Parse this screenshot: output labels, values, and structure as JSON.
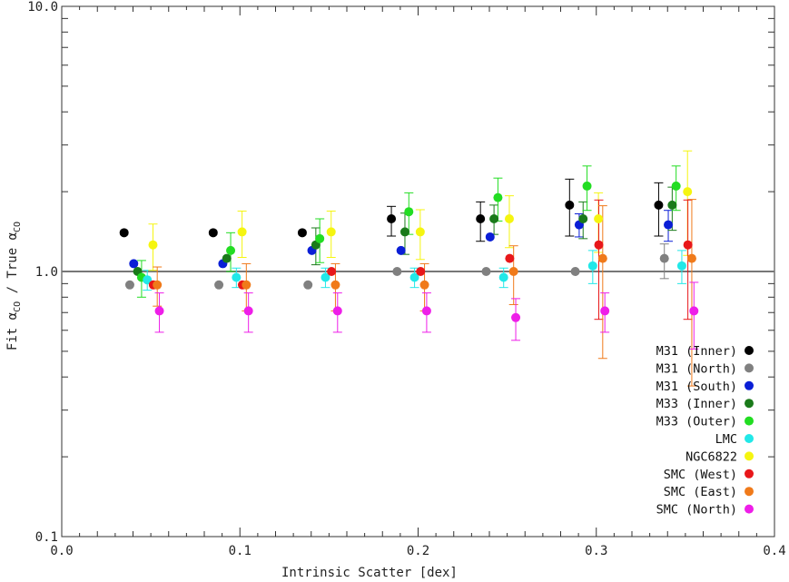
{
  "chart_data": {
    "type": "scatter",
    "title": "",
    "xlabel": "Intrinsic Scatter [dex]",
    "ylabel": "Fit αCO / True αCO",
    "ylabel_parts": {
      "fit": "Fit ",
      "alpha1": "α",
      "sub1": "CO",
      "mid": " / True ",
      "alpha2": "α",
      "sub2": "CO"
    },
    "xlim": [
      0.0,
      0.4
    ],
    "ylim": [
      0.1,
      10.0
    ],
    "yscale": "log",
    "xticks": [
      0.0,
      0.1,
      0.2,
      0.3,
      0.4
    ],
    "xtick_labels": [
      "0.0",
      "0.1",
      "0.2",
      "0.3",
      "0.4"
    ],
    "yticks": [
      0.1,
      1.0,
      10.0
    ],
    "ytick_labels": [
      "0.1",
      "1.0",
      "10.0"
    ],
    "reference_line": {
      "y": 1.0,
      "color": "#777777"
    },
    "legend_position": "bottom-right",
    "x_groups": [
      0.05,
      0.1,
      0.15,
      0.2,
      0.25,
      0.3,
      0.35
    ],
    "series": [
      {
        "name": "M31 (Inner)",
        "color": "#000000",
        "offset": -0.015,
        "values": [
          1.4,
          1.4,
          1.4,
          1.58,
          1.58,
          1.78,
          1.78
        ],
        "errors": [
          [
            0,
            0
          ],
          [
            0,
            0
          ],
          [
            0,
            0
          ],
          [
            0.22,
            0.18
          ],
          [
            0.28,
            0.25
          ],
          [
            0.42,
            0.45
          ],
          [
            0.42,
            0.38
          ]
        ]
      },
      {
        "name": "M31 (North)",
        "color": "#808080",
        "offset": -0.013,
        "values": [
          0.89,
          0.89,
          0.89,
          1.0,
          1.0,
          1.0,
          1.12
        ],
        "errors": [
          [
            0,
            0
          ],
          [
            0,
            0
          ],
          [
            0,
            0
          ],
          [
            0,
            0
          ],
          [
            0,
            0
          ],
          [
            0,
            0
          ],
          [
            0.18,
            0.15
          ]
        ]
      },
      {
        "name": "M31 (South)",
        "color": "#0a1ed6",
        "offset": -0.012,
        "values": [
          1.07,
          1.07,
          1.2,
          1.2,
          1.35,
          1.5,
          1.5
        ],
        "errors": [
          [
            0,
            0
          ],
          [
            0,
            0
          ],
          [
            0,
            0
          ],
          [
            0,
            0
          ],
          [
            0,
            0
          ],
          [
            0.15,
            0.15
          ],
          [
            0.2,
            0.2
          ]
        ]
      },
      {
        "name": "M33 (Inner)",
        "color": "#1a7a1a",
        "offset": -0.011,
        "values": [
          1.0,
          1.12,
          1.26,
          1.41,
          1.58,
          1.58,
          1.78
        ],
        "errors": [
          [
            0,
            0
          ],
          [
            0,
            0
          ],
          [
            0.2,
            0.2
          ],
          [
            0.25,
            0.25
          ],
          [
            0.2,
            0.2
          ],
          [
            0.25,
            0.25
          ],
          [
            0.35,
            0.3
          ]
        ]
      },
      {
        "name": "M33 (Outer)",
        "color": "#22dd22",
        "offset": -0.01,
        "values": [
          0.95,
          1.2,
          1.33,
          1.68,
          1.9,
          2.1,
          2.1
        ],
        "errors": [
          [
            0.15,
            0.15
          ],
          [
            0.2,
            0.2
          ],
          [
            0.25,
            0.25
          ],
          [
            0.3,
            0.3
          ],
          [
            0.35,
            0.35
          ],
          [
            0.4,
            0.4
          ],
          [
            0.4,
            0.4
          ]
        ]
      },
      {
        "name": "LMC",
        "color": "#22e8e8",
        "offset": -0.008,
        "values": [
          0.93,
          0.95,
          0.95,
          0.95,
          0.95,
          1.05,
          1.05
        ],
        "errors": [
          [
            0.08,
            0.08
          ],
          [
            0.08,
            0.08
          ],
          [
            0.08,
            0.08
          ],
          [
            0.08,
            0.08
          ],
          [
            0.08,
            0.08
          ],
          [
            0.15,
            0.15
          ],
          [
            0.15,
            0.15
          ]
        ]
      },
      {
        "name": "NGC6822",
        "color": "#f5f510",
        "offset": -0.006,
        "values": [
          1.26,
          1.41,
          1.41,
          1.41,
          1.58,
          1.58,
          2.0
        ],
        "errors": [
          [
            0.25,
            0.25
          ],
          [
            0.28,
            0.28
          ],
          [
            0.28,
            0.28
          ],
          [
            0.3,
            0.3
          ],
          [
            0.35,
            0.35
          ],
          [
            0.4,
            0.4
          ],
          [
            0.85,
            0.85
          ]
        ]
      },
      {
        "name": "SMC (West)",
        "color": "#e8171a",
        "offset": -0.007,
        "values": [
          0.89,
          0.89,
          1.0,
          1.0,
          1.12,
          1.26,
          1.26
        ],
        "errors": [
          [
            0,
            0
          ],
          [
            0,
            0
          ],
          [
            0,
            0
          ],
          [
            0,
            0
          ],
          [
            0,
            0
          ],
          [
            0.6,
            0.6
          ],
          [
            0.6,
            0.6
          ]
        ]
      },
      {
        "name": "SMC (East)",
        "color": "#f07a1a",
        "offset": -0.006,
        "values": [
          0.89,
          0.89,
          0.89,
          0.89,
          1.0,
          1.12,
          1.12
        ],
        "errors": [
          [
            0.15,
            0.15
          ],
          [
            0.18,
            0.18
          ],
          [
            0.18,
            0.18
          ],
          [
            0.18,
            0.18
          ],
          [
            0.25,
            0.25
          ],
          [
            0.65,
            0.65
          ],
          [
            0.75,
            0.75
          ]
        ]
      },
      {
        "name": "SMC (North)",
        "color": "#ee1ee8",
        "offset": -0.006,
        "values": [
          0.71,
          0.71,
          0.71,
          0.71,
          0.67,
          0.71,
          0.71
        ],
        "errors": [
          [
            0.12,
            0.12
          ],
          [
            0.12,
            0.12
          ],
          [
            0.12,
            0.12
          ],
          [
            0.12,
            0.12
          ],
          [
            0.12,
            0.12
          ],
          [
            0.12,
            0.12
          ],
          [
            0.2,
            0.2
          ]
        ]
      }
    ]
  }
}
